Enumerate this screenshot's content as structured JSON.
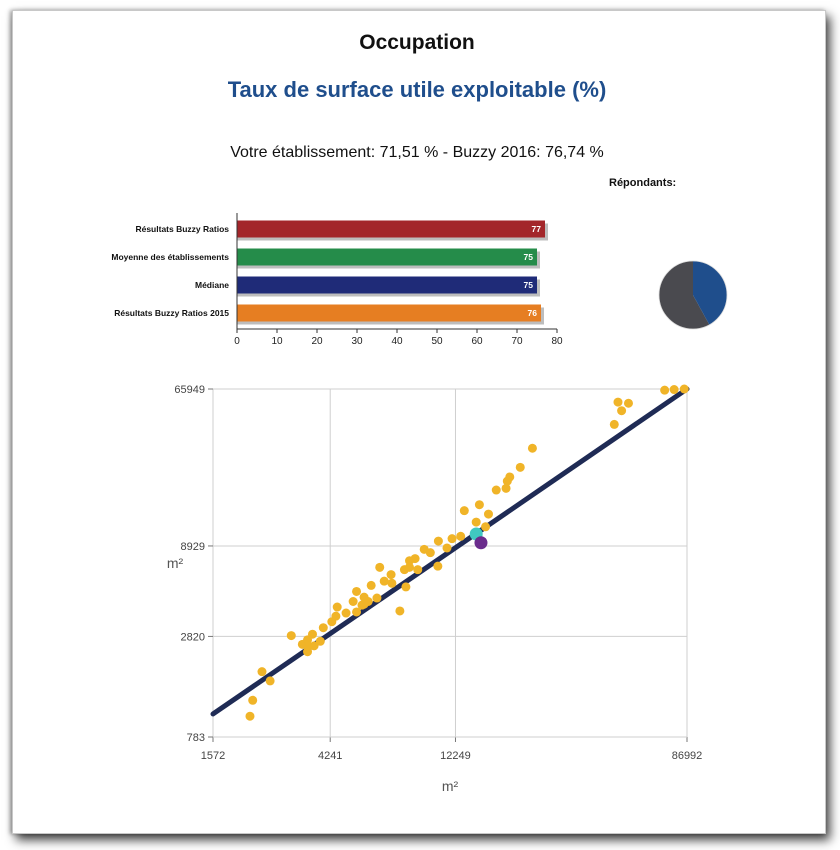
{
  "header": {
    "title": "Occupation",
    "subtitle": "Taux de surface utile exploitable (%)",
    "summary": "Votre établissement: 71,51 % - Buzzy 2016: 76,74 %",
    "respondants_label": "Répondants:"
  },
  "colors": {
    "red": "#a3262a",
    "green": "#258c4a",
    "navy": "#1f2b78",
    "orange": "#e67e22",
    "pie_dark": "#4a4a4f",
    "pie_blue": "#1f4e8c",
    "point_yellow": "#f0b428",
    "point_teal": "#40c8c0",
    "point_purple": "#6a2c8c",
    "line_navy": "#1f2b55"
  },
  "chart_data": [
    {
      "type": "bar",
      "orientation": "horizontal",
      "categories": [
        "Résultats Buzzy Ratios",
        "Moyenne des établissements",
        "Médiane",
        "Résultats Buzzy Ratios 2015"
      ],
      "values": [
        77,
        75,
        75,
        76
      ],
      "value_labels": [
        "77",
        "75",
        "75",
        "76"
      ],
      "colors": [
        "#a3262a",
        "#258c4a",
        "#1f2b78",
        "#e67e22"
      ],
      "xlim": [
        0,
        80
      ],
      "xticks": [
        "0",
        "10",
        "20",
        "30",
        "40",
        "50",
        "60",
        "70",
        "80"
      ]
    },
    {
      "type": "pie",
      "slices": [
        {
          "value": 0.58,
          "color": "#4a4a4f"
        },
        {
          "value": 0.42,
          "color": "#1f4e8c"
        }
      ]
    },
    {
      "type": "scatter",
      "scale": "log",
      "xlabel": "m²",
      "ylabel": "m²",
      "xlim": [
        1572,
        86992
      ],
      "ylim": [
        783,
        65949
      ],
      "xticks": [
        1572,
        4241,
        12249,
        86992
      ],
      "yticks": [
        783,
        2820,
        8929,
        65949
      ],
      "grid": true,
      "trend_line": [
        [
          1572,
          1050
        ],
        [
          86992,
          65949
        ]
      ],
      "points": [
        [
          2150,
          1020
        ],
        [
          2200,
          1250
        ],
        [
          2380,
          1800
        ],
        [
          2550,
          1600
        ],
        [
          3050,
          2850
        ],
        [
          3350,
          2550
        ],
        [
          3500,
          2700
        ],
        [
          3700,
          2500
        ],
        [
          3500,
          2320
        ],
        [
          3500,
          2500
        ],
        [
          3650,
          2900
        ],
        [
          3900,
          2650
        ],
        [
          4000,
          3150
        ],
        [
          4300,
          3400
        ],
        [
          4450,
          3650
        ],
        [
          4500,
          4100
        ],
        [
          4850,
          3800
        ],
        [
          5150,
          4400
        ],
        [
          5300,
          3850
        ],
        [
          5550,
          4200
        ],
        [
          5300,
          5000
        ],
        [
          5650,
          4650
        ],
        [
          5650,
          4250
        ],
        [
          5850,
          4400
        ],
        [
          6000,
          5400
        ],
        [
          6300,
          4600
        ],
        [
          6700,
          5700
        ],
        [
          6450,
          6800
        ],
        [
          7100,
          6200
        ],
        [
          7150,
          5550
        ],
        [
          7650,
          3900
        ],
        [
          7950,
          6600
        ],
        [
          8050,
          5300
        ],
        [
          8300,
          7400
        ],
        [
          8300,
          6800
        ],
        [
          8700,
          7600
        ],
        [
          8900,
          6600
        ],
        [
          9400,
          8550
        ],
        [
          9900,
          8200
        ],
        [
          10600,
          9500
        ],
        [
          10550,
          6900
        ],
        [
          11400,
          8700
        ],
        [
          11900,
          9800
        ],
        [
          12800,
          10100
        ],
        [
          13200,
          14000
        ],
        [
          14600,
          12100
        ],
        [
          15000,
          15100
        ],
        [
          15800,
          11400
        ],
        [
          16200,
          13400
        ],
        [
          17300,
          18200
        ],
        [
          18800,
          18600
        ],
        [
          19000,
          20400
        ],
        [
          19400,
          21500
        ],
        [
          21200,
          24300
        ],
        [
          23500,
          31000
        ],
        [
          47000,
          42000
        ],
        [
          50000,
          50000
        ],
        [
          53000,
          55000
        ],
        [
          72000,
          65000
        ],
        [
          78000,
          65500
        ],
        [
          85000,
          65949
        ],
        [
          48500,
          55800
        ]
      ],
      "highlight_points": [
        {
          "x": 14600,
          "y": 10400,
          "color": "#40c8c0"
        },
        {
          "x": 15200,
          "y": 9300,
          "color": "#6a2c8c"
        }
      ]
    }
  ]
}
